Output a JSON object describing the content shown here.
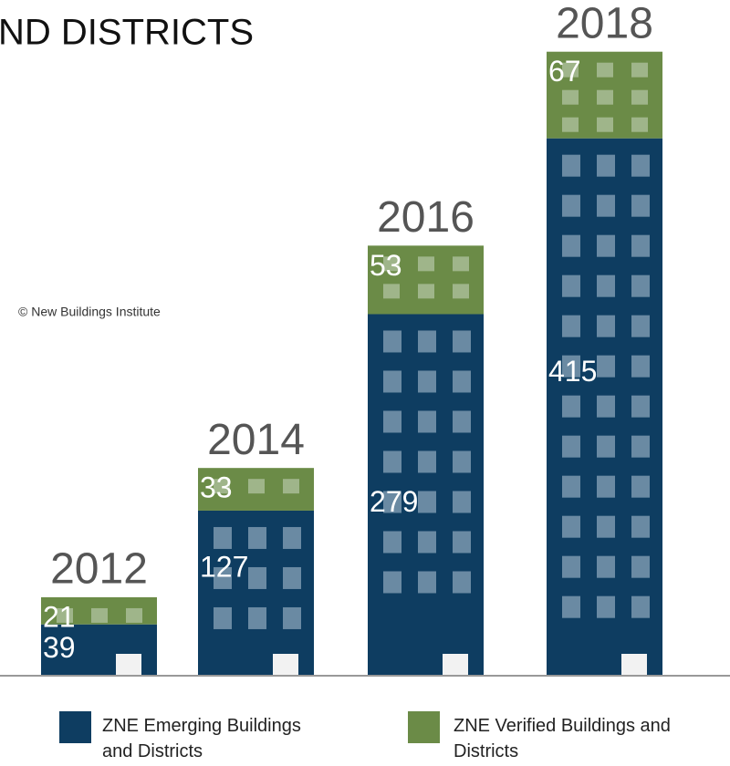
{
  "chart_data": {
    "type": "stacked_bar",
    "title": "ND DISTRICTS",
    "annotation": "© New Buildings Institute",
    "categories": [
      "2012",
      "2014",
      "2016",
      "2018"
    ],
    "series": [
      {
        "name": "ZNE Emerging Buildings and Districts",
        "color": "#0e3d61",
        "values": [
          39,
          127,
          279,
          415
        ]
      },
      {
        "name": "ZNE Verified Buildings and Districts",
        "color": "#6b8b47",
        "values": [
          21,
          33,
          53,
          67
        ]
      }
    ],
    "ylim": [
      0,
      522
    ]
  }
}
